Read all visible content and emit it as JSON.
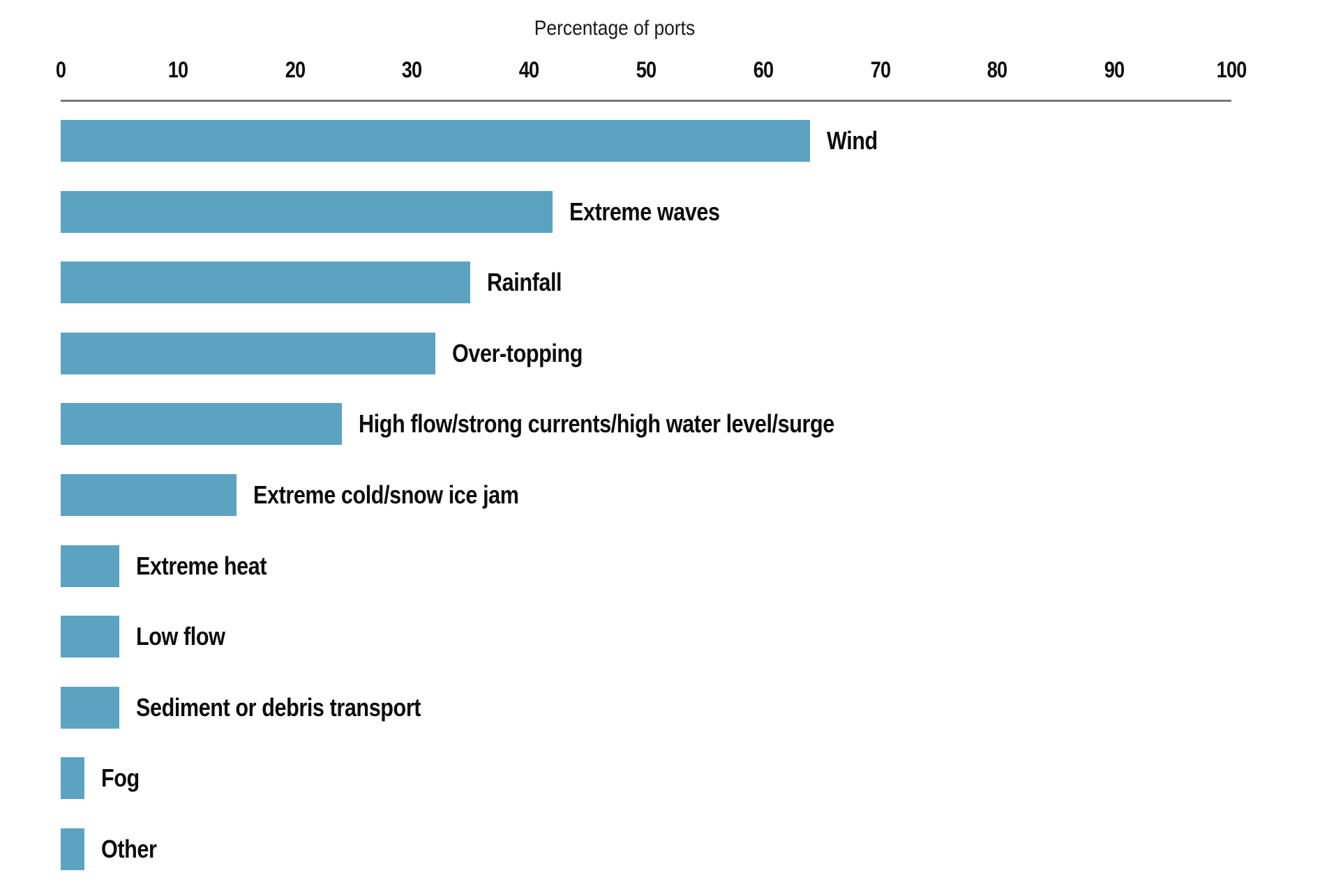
{
  "chart_data": {
    "type": "bar",
    "orientation": "horizontal",
    "title": "Percentage of ports",
    "categories": [
      "Wind",
      "Extreme waves",
      "Rainfall",
      "Over-topping",
      "High flow/strong currents/high water level/surge",
      "Extreme cold/snow ice jam",
      "Extreme heat",
      "Low flow",
      "Sediment or debris transport",
      "Fog",
      "Other"
    ],
    "values": [
      64,
      42,
      35,
      32,
      24,
      15,
      5,
      5,
      5,
      2,
      2
    ],
    "x_ticks": [
      0,
      10,
      20,
      30,
      40,
      50,
      60,
      70,
      80,
      90,
      100
    ],
    "xlim": [
      0,
      100
    ],
    "xlabel": "Percentage of ports",
    "grid": false,
    "bar_color": "#5CA3C2",
    "axis_line_color": "#777777",
    "text_color": "#0d0d0d"
  }
}
